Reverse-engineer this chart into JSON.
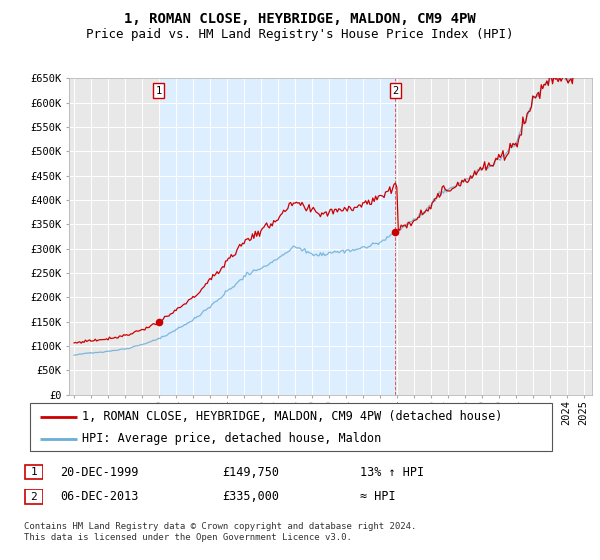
{
  "title": "1, ROMAN CLOSE, HEYBRIDGE, MALDON, CM9 4PW",
  "subtitle": "Price paid vs. HM Land Registry's House Price Index (HPI)",
  "ylim": [
    0,
    650000
  ],
  "yticks": [
    0,
    50000,
    100000,
    150000,
    200000,
    250000,
    300000,
    350000,
    400000,
    450000,
    500000,
    550000,
    600000,
    650000
  ],
  "ytick_labels": [
    "£0",
    "£50K",
    "£100K",
    "£150K",
    "£200K",
    "£250K",
    "£300K",
    "£350K",
    "£400K",
    "£450K",
    "£500K",
    "£550K",
    "£600K",
    "£650K"
  ],
  "xlim_start": 1994.7,
  "xlim_end": 2025.5,
  "hpi_color": "#6baed6",
  "price_color": "#cc0000",
  "shade_color": "#ddeeff",
  "bg_color": "#e8e8e8",
  "plot_bg_color": "#e8e8e8",
  "sale1_date": 1999.97,
  "sale1_price": 149750,
  "sale2_date": 2013.92,
  "sale2_price": 335000,
  "legend_label_red": "1, ROMAN CLOSE, HEYBRIDGE, MALDON, CM9 4PW (detached house)",
  "legend_label_blue": "HPI: Average price, detached house, Maldon",
  "transaction1_num": "1",
  "transaction1_date": "20-DEC-1999",
  "transaction1_price": "£149,750",
  "transaction1_hpi": "13% ↑ HPI",
  "transaction2_num": "2",
  "transaction2_date": "06-DEC-2013",
  "transaction2_price": "£335,000",
  "transaction2_hpi": "≈ HPI",
  "footer": "Contains HM Land Registry data © Crown copyright and database right 2024.\nThis data is licensed under the Open Government Licence v3.0.",
  "title_fontsize": 10,
  "subtitle_fontsize": 9,
  "tick_fontsize": 7.5,
  "legend_fontsize": 8.5
}
